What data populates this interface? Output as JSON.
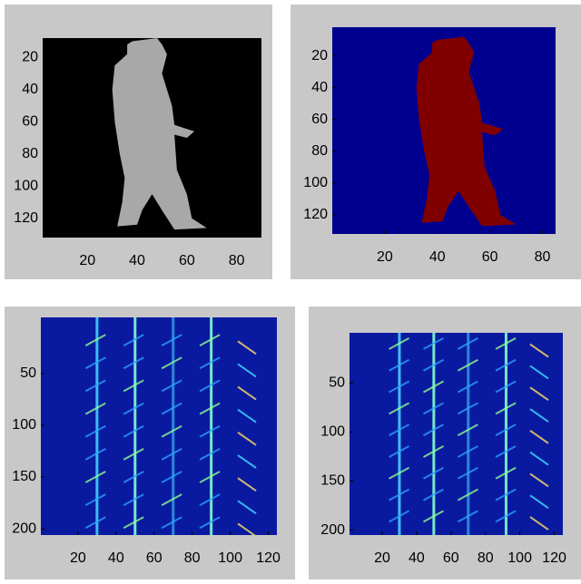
{
  "chart_data": [
    {
      "type": "image",
      "xlim": [
        2,
        90
      ],
      "ylim": [
        8,
        132
      ],
      "xticks": [
        20,
        40,
        60,
        80
      ],
      "yticks": [
        20,
        40,
        60,
        80,
        100,
        120
      ]
    },
    {
      "type": "image",
      "xlim": [
        0,
        85
      ],
      "ylim": [
        2,
        132
      ],
      "xticks": [
        20,
        40,
        60,
        80
      ],
      "yticks": [
        20,
        40,
        60,
        80,
        100,
        120
      ]
    },
    {
      "type": "image",
      "xlim": [
        0.5,
        124.5
      ],
      "ylim": [
        -4,
        206
      ],
      "xticks": [
        20,
        40,
        60,
        80,
        100,
        120
      ],
      "yticks": [
        50,
        100,
        150,
        200
      ]
    },
    {
      "type": "image",
      "xlim": [
        1,
        125
      ],
      "ylim": [
        -1,
        205
      ],
      "xticks": [
        20,
        40,
        60,
        80,
        100,
        120
      ],
      "yticks": [
        50,
        100,
        150,
        200
      ]
    }
  ]
}
